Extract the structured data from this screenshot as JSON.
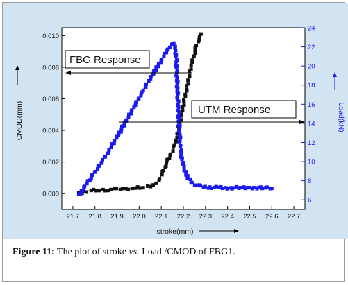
{
  "chart_data": {
    "type": "scatter",
    "xlabel": "stroke(mm)",
    "y_left_label": "CMOD(mm)",
    "y_right_label": "Load(kN)",
    "xlim": [
      21.65,
      22.75
    ],
    "ylim_left": [
      -0.001,
      0.0105
    ],
    "ylim_right": [
      5,
      24
    ],
    "x_ticks": [
      "21.7",
      "21.8",
      "21.9",
      "22.0",
      "22.1",
      "22.2",
      "22.3",
      "22.4",
      "22.5",
      "22.6",
      "22.7"
    ],
    "y_left_ticks": [
      "0.000",
      "0.002",
      "0.004",
      "0.006",
      "0.008",
      "0.010"
    ],
    "y_right_ticks": [
      "6",
      "8",
      "10",
      "12",
      "14",
      "16",
      "18",
      "20",
      "22",
      "24"
    ],
    "series": [
      {
        "axis": "left",
        "color": "#111111",
        "x": [
          21.73,
          21.75,
          21.78,
          21.82,
          21.86,
          21.9,
          21.94,
          21.98,
          22.02,
          22.05,
          22.08,
          22.09,
          22.1,
          22.11,
          22.12,
          22.13,
          22.14,
          22.15,
          22.16,
          22.17,
          22.18,
          22.19,
          22.2,
          22.21,
          22.22,
          22.23,
          22.24,
          22.25,
          22.26,
          22.27,
          22.28
        ],
        "y": [
          0.0,
          0.0001,
          0.0002,
          0.00022,
          0.00025,
          0.00028,
          0.0003,
          0.00035,
          0.0004,
          0.0005,
          0.0006,
          0.0008,
          0.0012,
          0.0015,
          0.0018,
          0.0021,
          0.0024,
          0.0027,
          0.0031,
          0.0036,
          0.0042,
          0.0049,
          0.0056,
          0.0063,
          0.007,
          0.0077,
          0.0083,
          0.0089,
          0.0094,
          0.0098,
          0.0101
        ]
      },
      {
        "axis": "right",
        "color": "#1a1af0",
        "x": [
          21.73,
          21.75,
          21.78,
          21.82,
          21.86,
          21.9,
          21.94,
          21.98,
          22.02,
          22.05,
          22.08,
          22.1,
          22.12,
          22.14,
          22.15,
          22.16,
          22.165,
          22.17,
          22.175,
          22.18,
          22.185,
          22.19,
          22.2,
          22.22,
          22.25,
          22.28,
          22.32,
          22.36,
          22.4,
          22.45,
          22.5,
          22.55,
          22.6
        ],
        "y": [
          6.5,
          7.3,
          8.3,
          9.6,
          11.0,
          12.6,
          14.2,
          15.9,
          17.5,
          18.7,
          19.8,
          20.6,
          21.4,
          22.0,
          22.4,
          22.3,
          21.6,
          19.5,
          16.5,
          14.0,
          12.0,
          10.8,
          9.5,
          8.3,
          7.6,
          7.4,
          7.3,
          7.3,
          7.2,
          7.3,
          7.2,
          7.3,
          7.2
        ]
      }
    ],
    "annotations": [
      {
        "text": "FBG Response",
        "arrow_to": "left",
        "at_y_right": 19.4
      },
      {
        "text": "UTM  Response",
        "arrow_to": "right",
        "at_y_right": 14.0
      }
    ]
  },
  "caption": {
    "figure_label": "Figure 11:",
    "text_before": " The plot of stroke ",
    "vs": "vs.",
    "text_after": " Load /CMOD of FBG1."
  }
}
